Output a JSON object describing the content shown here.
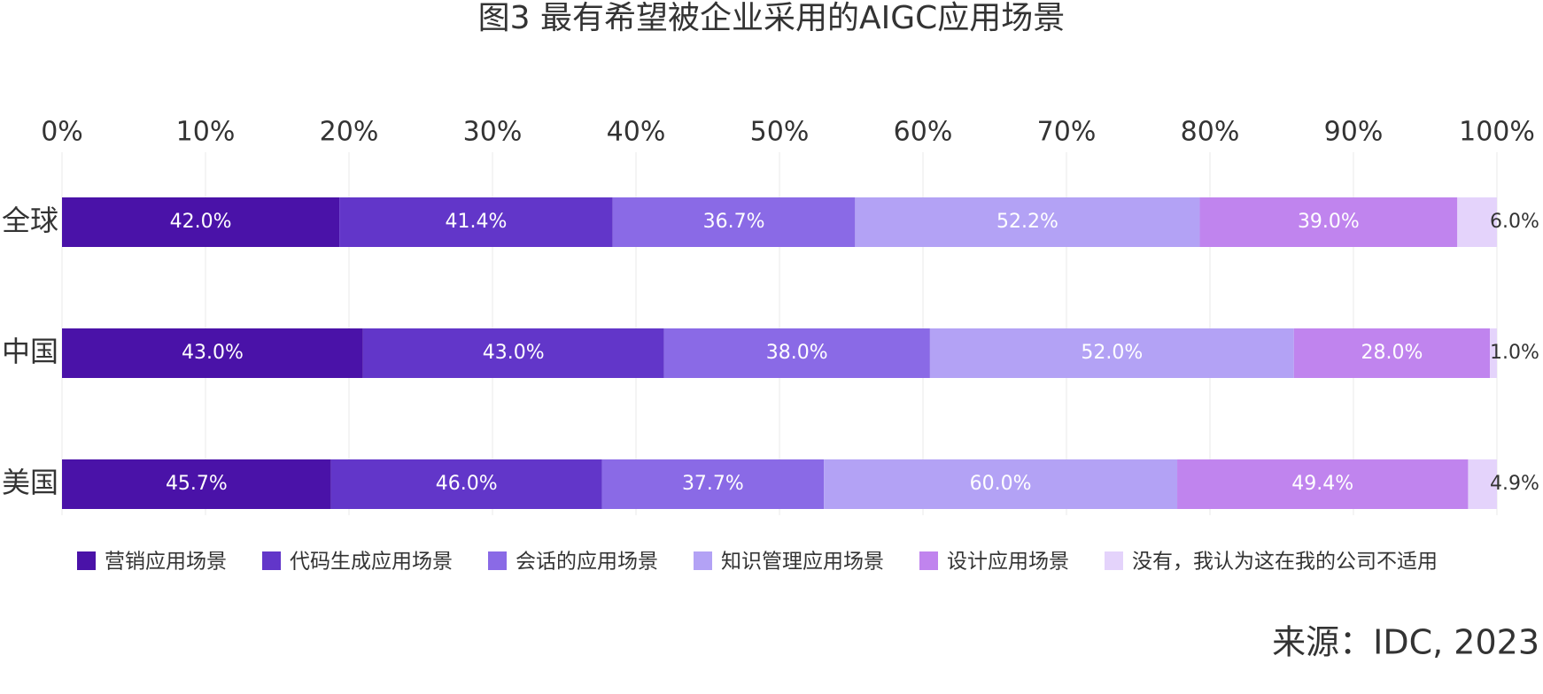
{
  "chart_data": {
    "type": "bar",
    "orientation": "horizontal",
    "stacking": "percent",
    "title": "图3 最有希望被企业采用的AIGC应用场景",
    "source": "来源：IDC, 2023",
    "categories": [
      "全球",
      "中国",
      "美国"
    ],
    "xlim": [
      0,
      100
    ],
    "xticks": [
      {
        "value": 0,
        "label": "0%"
      },
      {
        "value": 10,
        "label": "10%"
      },
      {
        "value": 20,
        "label": "20%"
      },
      {
        "value": 30,
        "label": "30%"
      },
      {
        "value": 40,
        "label": "40%"
      },
      {
        "value": 50,
        "label": "50%"
      },
      {
        "value": 60,
        "label": "60%"
      },
      {
        "value": 70,
        "label": "70%"
      },
      {
        "value": 80,
        "label": "80%"
      },
      {
        "value": 90,
        "label": "90%"
      },
      {
        "value": 100,
        "label": "100%"
      }
    ],
    "grid": true,
    "legend": "bottom",
    "series": [
      {
        "name": "营销应用场景",
        "color": "#4a12a8",
        "values": [
          42.0,
          43.0,
          45.7
        ],
        "value_labels": [
          "42.0%",
          "43.0%",
          "45.7%"
        ]
      },
      {
        "name": "代码生成应用场景",
        "color": "#6236c9",
        "values": [
          41.4,
          43.0,
          46.0
        ],
        "value_labels": [
          "41.4%",
          "43.0%",
          "46.0%"
        ]
      },
      {
        "name": "会话的应用场景",
        "color": "#8a6ae6",
        "values": [
          36.7,
          38.0,
          37.7
        ],
        "value_labels": [
          "36.7%",
          "38.0%",
          "37.7%"
        ]
      },
      {
        "name": "知识管理应用场景",
        "color": "#b3a2f5",
        "values": [
          52.2,
          52.0,
          60.0
        ],
        "value_labels": [
          "52.2%",
          "52.0%",
          "60.0%"
        ]
      },
      {
        "name": "设计应用场景",
        "color": "#c084ee",
        "values": [
          39.0,
          28.0,
          49.4
        ],
        "value_labels": [
          "39.0%",
          "28.0%",
          "49.4%"
        ]
      },
      {
        "name": "没有，我认为这在我的公司不适用",
        "color": "#e4d3fb",
        "values": [
          6.0,
          1.0,
          4.9
        ],
        "value_labels": [
          "6.0%",
          "1.0%",
          "4.9%"
        ]
      }
    ]
  }
}
